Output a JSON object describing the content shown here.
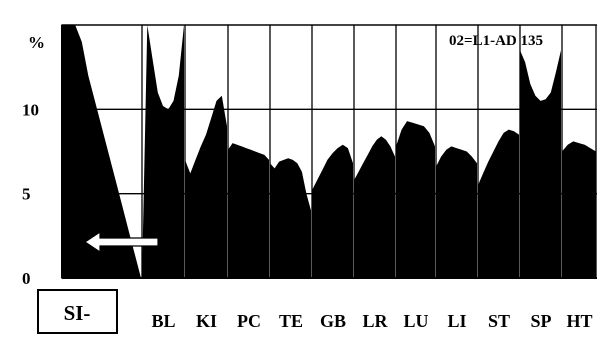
{
  "chart_data": {
    "type": "area",
    "ylabel": "%",
    "ylim": [
      0,
      15
    ],
    "yticks": [
      0,
      5,
      10
    ],
    "grid": true,
    "annotation": "02=L1-AD 135",
    "highlight": {
      "label": "SI-",
      "arrow": "left"
    },
    "categories": [
      "SI",
      "BL",
      "KI",
      "PC",
      "TE",
      "GB",
      "LR",
      "LU",
      "LI",
      "ST",
      "SP",
      "HT"
    ],
    "tick_labels": [
      "BL",
      "KI",
      "PC",
      "TE",
      "GB",
      "LR",
      "LU",
      "LI",
      "ST",
      "SP",
      "HT"
    ],
    "series": [
      {
        "values_by_category": [
          [
            15,
            15,
            15,
            14,
            12,
            10.5,
            9,
            7.5,
            6,
            4.5,
            3,
            1.5,
            0
          ],
          [
            0,
            15,
            13,
            11,
            10.2,
            10,
            10.5,
            12,
            15
          ],
          [
            7,
            6.2,
            7,
            7.8,
            8.5,
            9.5,
            10.5,
            10.8,
            9
          ],
          [
            7.6,
            8,
            7.9,
            7.8,
            7.7,
            7.6,
            7.5,
            7.4,
            7.3,
            7
          ],
          [
            6.8,
            6.5,
            6.9,
            7,
            7.1,
            7,
            6.8,
            6.3,
            5,
            4
          ],
          [
            5.2,
            5.8,
            6.4,
            7,
            7.4,
            7.7,
            7.9,
            7.7,
            6.8
          ],
          [
            5.8,
            6.3,
            6.8,
            7.3,
            7.8,
            8.2,
            8.4,
            8.2,
            7.8,
            7.2
          ],
          [
            7.8,
            8.8,
            9.3,
            9.2,
            9.1,
            9,
            8.6,
            7.8
          ],
          [
            6.6,
            7.2,
            7.6,
            7.8,
            7.7,
            7.6,
            7.5,
            7.2,
            6.8
          ],
          [
            5.5,
            6.2,
            6.9,
            7.5,
            8.1,
            8.6,
            8.8,
            8.7,
            8.5
          ],
          [
            13.5,
            12.8,
            11.5,
            10.8,
            10.5,
            10.6,
            11,
            12.2,
            13.5
          ],
          [
            7.5,
            7.9,
            8.1,
            8,
            7.9,
            7.7,
            7.5
          ]
        ]
      }
    ]
  }
}
